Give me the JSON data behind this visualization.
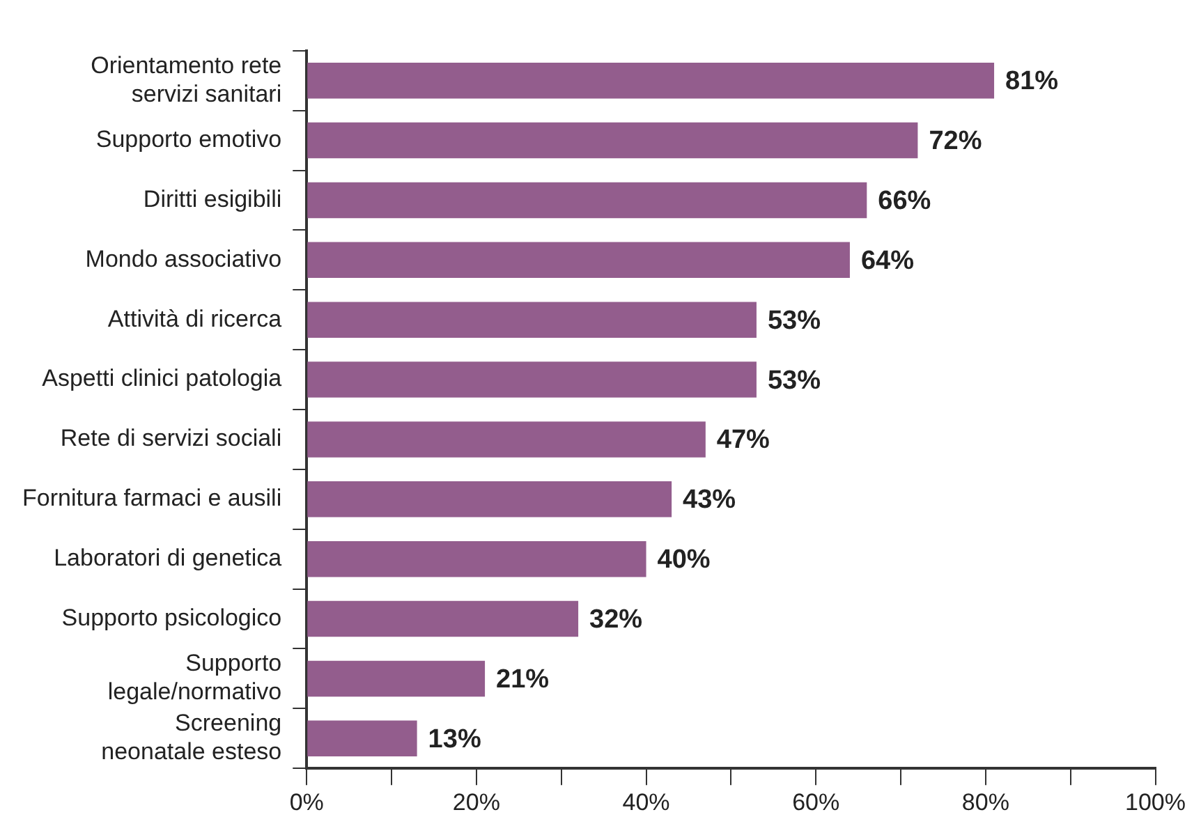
{
  "chart_data": {
    "type": "bar",
    "orientation": "horizontal",
    "categories": [
      "Orientamento rete\nservizi sanitari",
      "Supporto emotivo",
      "Diritti esigibili",
      "Mondo associativo",
      "Attività di ricerca",
      "Aspetti clinici patologia",
      "Rete di servizi sociali",
      "Fornitura farmaci e ausili",
      "Laboratori di genetica",
      "Supporto psicologico",
      "Supporto\nlegale/normativo",
      "Screening\nneonatale esteso"
    ],
    "values": [
      81,
      72,
      66,
      64,
      53,
      53,
      47,
      43,
      40,
      32,
      21,
      13
    ],
    "value_labels": [
      "81%",
      "72%",
      "66%",
      "64%",
      "53%",
      "53%",
      "47%",
      "43%",
      "40%",
      "32%",
      "21%",
      "13%"
    ],
    "color": "#935d8d",
    "xlim": [
      0,
      100
    ],
    "xticks": [
      {
        "value": 0,
        "label": "0%"
      },
      {
        "value": 10,
        "label": null
      },
      {
        "value": 20,
        "label": "20%"
      },
      {
        "value": 30,
        "label": null
      },
      {
        "value": 40,
        "label": "40%"
      },
      {
        "value": 50,
        "label": null
      },
      {
        "value": 60,
        "label": "60%"
      },
      {
        "value": 70,
        "label": null
      },
      {
        "value": 80,
        "label": "80%"
      },
      {
        "value": 90,
        "label": null
      },
      {
        "value": 100,
        "label": "100%"
      }
    ],
    "grid": false,
    "legend": false
  }
}
